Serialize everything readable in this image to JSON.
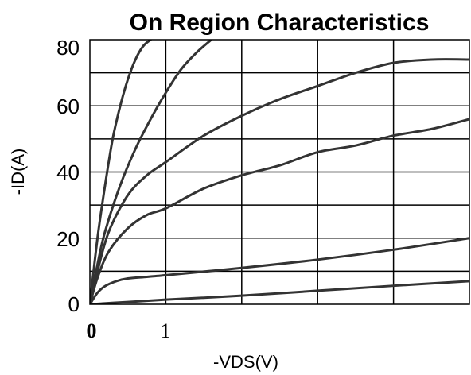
{
  "chart_data": {
    "type": "line",
    "title": "On Region Characteristics",
    "xlabel": "-VDS(V)",
    "ylabel": "-ID(A)",
    "xlim": [
      0,
      5
    ],
    "ylim": [
      0,
      80
    ],
    "grid": true,
    "x_ticks": [
      "0",
      "1"
    ],
    "y_ticks": [
      "0",
      "20",
      "40",
      "60",
      "80"
    ],
    "series": [
      {
        "x": [
          0,
          0.1,
          0.2,
          0.3,
          0.4,
          0.5,
          0.6,
          0.7,
          0.8
        ],
        "values": [
          0,
          20,
          36,
          50,
          60,
          68,
          74,
          78,
          80
        ]
      },
      {
        "x": [
          0,
          0.1,
          0.2,
          0.4,
          0.6,
          0.8,
          1,
          1.2,
          1.4,
          1.6
        ],
        "values": [
          0,
          12,
          22,
          36,
          47,
          56,
          64,
          71,
          76,
          80
        ]
      },
      {
        "x": [
          0,
          0.1,
          0.25,
          0.5,
          0.75,
          1,
          1.5,
          2,
          2.5,
          3,
          3.5,
          4,
          4.5,
          5
        ],
        "values": [
          0,
          10,
          22,
          33,
          39,
          43,
          51,
          57,
          62,
          66,
          70,
          73,
          74,
          74
        ]
      },
      {
        "x": [
          0,
          0.1,
          0.25,
          0.5,
          0.75,
          1,
          1.5,
          2,
          2.5,
          3,
          3.5,
          4,
          4.5,
          5
        ],
        "values": [
          0,
          8,
          16,
          23,
          27,
          29,
          35,
          39,
          42,
          46,
          48,
          51,
          53,
          56
        ]
      },
      {
        "x": [
          0,
          0.1,
          0.2,
          0.35,
          0.5,
          0.75,
          1,
          2,
          3,
          4,
          5
        ],
        "values": [
          0,
          3.5,
          5.5,
          7,
          7.8,
          8.3,
          8.8,
          11,
          13.5,
          16.5,
          20
        ]
      },
      {
        "x": [
          0,
          0.5,
          1,
          2,
          3,
          4,
          5
        ],
        "values": [
          0,
          0.7,
          1.4,
          2.6,
          4.1,
          5.6,
          7
        ]
      }
    ]
  }
}
